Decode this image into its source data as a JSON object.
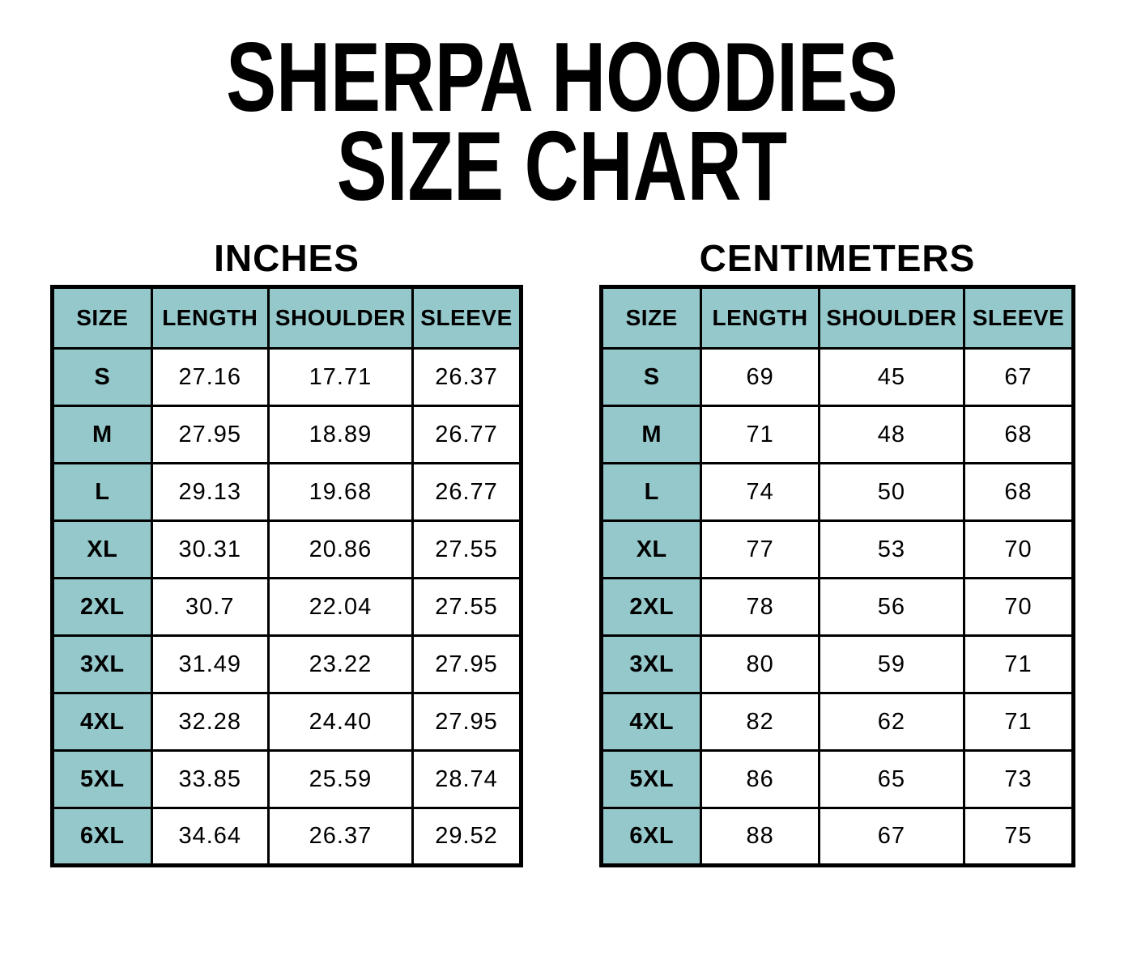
{
  "page": {
    "title_line1": "SHERPA HOODIES",
    "title_line2": "SIZE CHART"
  },
  "colors": {
    "page_bg": "#FFFFFF",
    "header_bg": "#95C8CB",
    "border": "#000000",
    "text": "#000000"
  },
  "tables": [
    {
      "title": "INCHES",
      "columns": [
        "SIZE",
        "LENGTH",
        "SHOULDER",
        "SLEEVE"
      ],
      "rows": [
        {
          "size": "S",
          "values": [
            "27.16",
            "17.71",
            "26.37"
          ]
        },
        {
          "size": "M",
          "values": [
            "27.95",
            "18.89",
            "26.77"
          ]
        },
        {
          "size": "L",
          "values": [
            "29.13",
            "19.68",
            "26.77"
          ]
        },
        {
          "size": "XL",
          "values": [
            "30.31",
            "20.86",
            "27.55"
          ]
        },
        {
          "size": "2XL",
          "values": [
            "30.7",
            "22.04",
            "27.55"
          ]
        },
        {
          "size": "3XL",
          "values": [
            "31.49",
            "23.22",
            "27.95"
          ]
        },
        {
          "size": "4XL",
          "values": [
            "32.28",
            "24.40",
            "27.95"
          ]
        },
        {
          "size": "5XL",
          "values": [
            "33.85",
            "25.59",
            "28.74"
          ]
        },
        {
          "size": "6XL",
          "values": [
            "34.64",
            "26.37",
            "29.52"
          ]
        }
      ]
    },
    {
      "title": "CENTIMETERS",
      "columns": [
        "SIZE",
        "LENGTH",
        "SHOULDER",
        "SLEEVE"
      ],
      "rows": [
        {
          "size": "S",
          "values": [
            "69",
            "45",
            "67"
          ]
        },
        {
          "size": "M",
          "values": [
            "71",
            "48",
            "68"
          ]
        },
        {
          "size": "L",
          "values": [
            "74",
            "50",
            "68"
          ]
        },
        {
          "size": "XL",
          "values": [
            "77",
            "53",
            "70"
          ]
        },
        {
          "size": "2XL",
          "values": [
            "78",
            "56",
            "70"
          ]
        },
        {
          "size": "3XL",
          "values": [
            "80",
            "59",
            "71"
          ]
        },
        {
          "size": "4XL",
          "values": [
            "82",
            "62",
            "71"
          ]
        },
        {
          "size": "5XL",
          "values": [
            "86",
            "65",
            "73"
          ]
        },
        {
          "size": "6XL",
          "values": [
            "88",
            "67",
            "75"
          ]
        }
      ]
    }
  ],
  "chart_data": [
    {
      "type": "table",
      "title": "INCHES",
      "columns": [
        "SIZE",
        "LENGTH",
        "SHOULDER",
        "SLEEVE"
      ],
      "rows": [
        [
          "S",
          27.16,
          17.71,
          26.37
        ],
        [
          "M",
          27.95,
          18.89,
          26.77
        ],
        [
          "L",
          29.13,
          19.68,
          26.77
        ],
        [
          "XL",
          30.31,
          20.86,
          27.55
        ],
        [
          "2XL",
          30.7,
          22.04,
          27.55
        ],
        [
          "3XL",
          31.49,
          23.22,
          27.95
        ],
        [
          "4XL",
          32.28,
          24.4,
          27.95
        ],
        [
          "5XL",
          33.85,
          25.59,
          28.74
        ],
        [
          "6XL",
          34.64,
          26.37,
          29.52
        ]
      ]
    },
    {
      "type": "table",
      "title": "CENTIMETERS",
      "columns": [
        "SIZE",
        "LENGTH",
        "SHOULDER",
        "SLEEVE"
      ],
      "rows": [
        [
          "S",
          69,
          45,
          67
        ],
        [
          "M",
          71,
          48,
          68
        ],
        [
          "L",
          74,
          50,
          68
        ],
        [
          "XL",
          77,
          53,
          70
        ],
        [
          "2XL",
          78,
          56,
          70
        ],
        [
          "3XL",
          80,
          59,
          71
        ],
        [
          "4XL",
          82,
          62,
          71
        ],
        [
          "5XL",
          86,
          65,
          73
        ],
        [
          "6XL",
          88,
          67,
          75
        ]
      ]
    }
  ]
}
